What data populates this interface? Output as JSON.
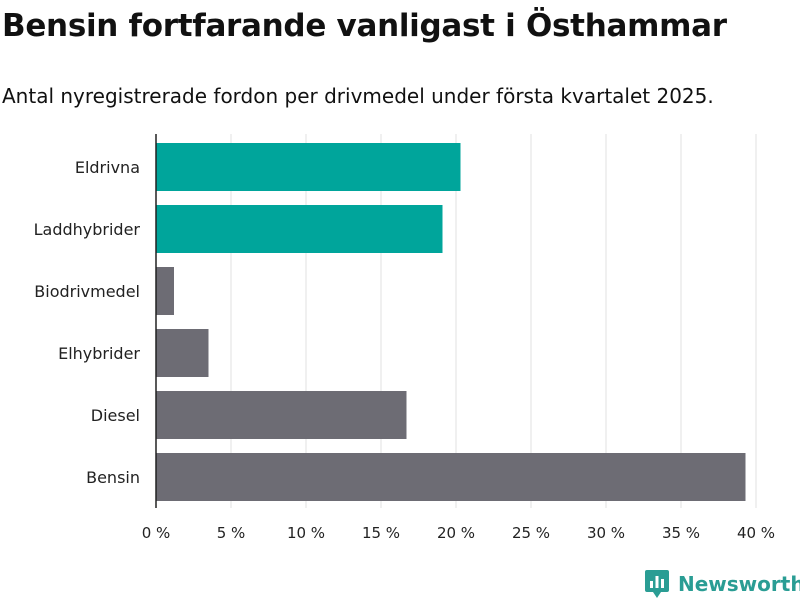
{
  "title": "Bensin fortfarande vanligast i Östhammar",
  "subtitle": "Antal nyregistrerade fordon per drivmedel under första kvartalet 2025.",
  "brand": {
    "name": "Newsworthy",
    "color": "#2a9d94",
    "icon": "bar-chart-icon"
  },
  "colors": {
    "highlight": "#00a59b",
    "default": "#6d6c74",
    "grid": "#e0e0e0",
    "axis": "#222222"
  },
  "chart_data": {
    "type": "bar",
    "orientation": "horizontal",
    "categories": [
      "Eldrivna",
      "Laddhybrider",
      "Biodrivmedel",
      "Elhybrider",
      "Diesel",
      "Bensin"
    ],
    "values": [
      20.3,
      19.1,
      1.2,
      3.5,
      16.7,
      39.3
    ],
    "highlighted": [
      true,
      true,
      false,
      false,
      false,
      false
    ],
    "xlim": [
      0,
      40
    ],
    "xticks": [
      0,
      5,
      10,
      15,
      20,
      25,
      30,
      35,
      40
    ],
    "xtick_labels": [
      "0 %",
      "5 %",
      "10 %",
      "15 %",
      "20 %",
      "25 %",
      "30 %",
      "35 %",
      "40 %"
    ],
    "grid": true
  }
}
